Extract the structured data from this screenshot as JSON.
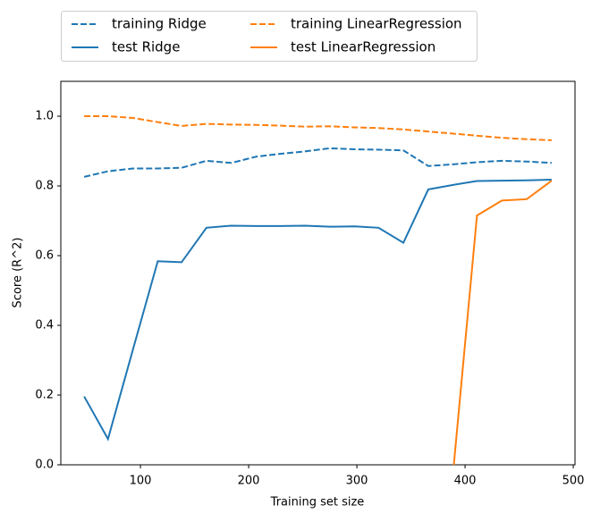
{
  "chart_data": {
    "type": "line",
    "xlabel": "Training set size",
    "ylabel": "Score (R^2)",
    "x": [
      48,
      70,
      93,
      116,
      138,
      161,
      184,
      207,
      229,
      252,
      275,
      298,
      320,
      343,
      366,
      389,
      411,
      434,
      457,
      480
    ],
    "series": [
      {
        "name": "training Ridge",
        "color": "#1f77b4",
        "style": "dashed",
        "values": [
          0.826,
          0.842,
          0.85,
          0.85,
          0.852,
          0.872,
          0.866,
          0.884,
          0.892,
          0.899,
          0.908,
          0.905,
          0.904,
          0.902,
          0.857,
          0.862,
          0.868,
          0.872,
          0.87,
          0.866
        ]
      },
      {
        "name": "test Ridge",
        "color": "#1f77b4",
        "style": "solid",
        "values": [
          0.196,
          0.074,
          0.33,
          0.584,
          0.581,
          0.68,
          0.686,
          0.685,
          0.685,
          0.686,
          0.683,
          0.684,
          0.68,
          0.637,
          0.79,
          0.803,
          0.814,
          0.815,
          0.816,
          0.818
        ]
      },
      {
        "name": "training LinearRegression",
        "color": "#ff7f0e",
        "style": "dashed",
        "values": [
          1.0,
          1.0,
          0.995,
          0.983,
          0.972,
          0.978,
          0.976,
          0.975,
          0.973,
          0.97,
          0.971,
          0.968,
          0.966,
          0.962,
          0.956,
          0.95,
          0.944,
          0.938,
          0.934,
          0.931
        ]
      },
      {
        "name": "test LinearRegression",
        "color": "#ff7f0e",
        "style": "solid",
        "values": [
          null,
          null,
          null,
          null,
          null,
          null,
          null,
          null,
          null,
          null,
          null,
          null,
          null,
          null,
          null,
          -0.02,
          0.715,
          0.758,
          0.762,
          0.815
        ]
      }
    ],
    "xlim": [
      26.4,
      501.6
    ],
    "ylim": [
      0,
      1.1
    ],
    "xticks": [
      100,
      200,
      300,
      400,
      500
    ],
    "yticks": [
      {
        "value": 0,
        "label": "0.0"
      },
      0.2,
      0.4,
      0.6,
      0.8,
      {
        "value": 1,
        "label": "1.0"
      }
    ],
    "legend": "upper center outside",
    "legend_columns": 2
  }
}
